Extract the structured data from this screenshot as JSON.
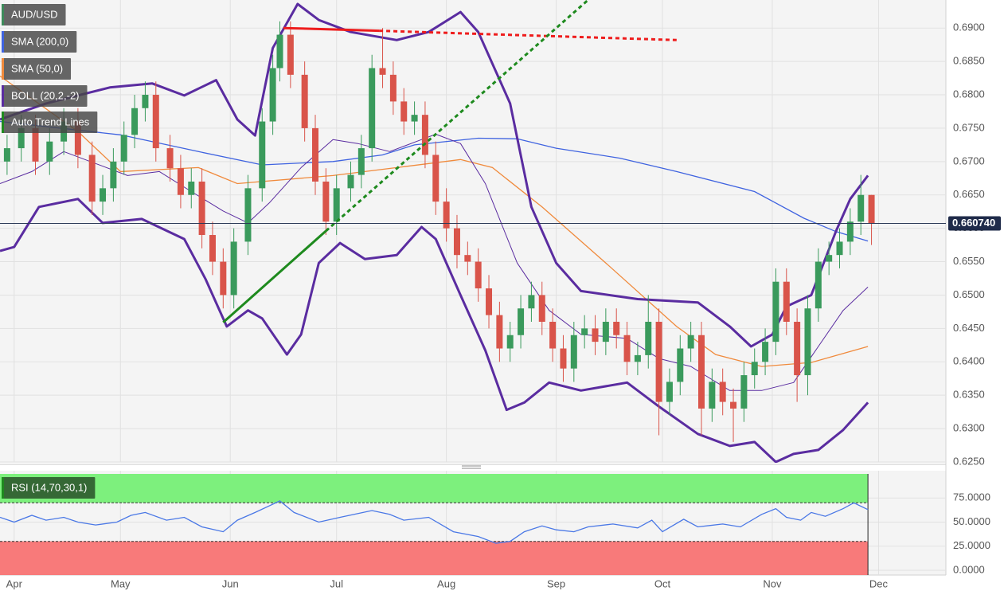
{
  "chart_data": [
    {
      "type": "candlestick",
      "name": "AUD/USD",
      "color": "#3d8a5a",
      "up_color": "#3a9a5c",
      "down_color": "#d9544a",
      "xlim": [
        -4,
        263
      ],
      "ylim": [
        0.625,
        0.6942
      ],
      "grid": true,
      "xticks": [
        {
          "value": 0,
          "label": "Apr"
        },
        {
          "value": 30,
          "label": "May"
        },
        {
          "value": 61,
          "label": "Jun"
        },
        {
          "value": 91,
          "label": "Jul"
        },
        {
          "value": 122,
          "label": "Aug"
        },
        {
          "value": 153,
          "label": "Sep"
        },
        {
          "value": 183,
          "label": "Oct"
        },
        {
          "value": 214,
          "label": "Nov"
        },
        {
          "value": 244,
          "label": "Dec"
        }
      ],
      "yticks": [
        {
          "value": 0.69,
          "label": "0.6900"
        },
        {
          "value": 0.685,
          "label": "0.6850"
        },
        {
          "value": 0.68,
          "label": "0.6800"
        },
        {
          "value": 0.675,
          "label": "0.6750"
        },
        {
          "value": 0.67,
          "label": "0.6700"
        },
        {
          "value": 0.665,
          "label": "0.6650"
        },
        {
          "value": 0.66,
          "label": "0.6600"
        },
        {
          "value": 0.655,
          "label": "0.6550"
        },
        {
          "value": 0.65,
          "label": "0.6500"
        },
        {
          "value": 0.645,
          "label": "0.6450"
        },
        {
          "value": 0.64,
          "label": "0.6400"
        },
        {
          "value": 0.635,
          "label": "0.6350"
        },
        {
          "value": 0.63,
          "label": "0.6300"
        },
        {
          "value": 0.625,
          "label": "0.6250"
        }
      ],
      "last_price": {
        "value": 0.66074,
        "label": "0.660740"
      },
      "x": [
        -2,
        2,
        6,
        10,
        14,
        18,
        22,
        25,
        28,
        31,
        34,
        37,
        40,
        44,
        47,
        50,
        53,
        56,
        59,
        62,
        66,
        70,
        73,
        75,
        78,
        82,
        85,
        88,
        91,
        95,
        98,
        101,
        104,
        107,
        110,
        113,
        116,
        119,
        122,
        125,
        128,
        131,
        134,
        137,
        140,
        143,
        146,
        149,
        152,
        155,
        158,
        161,
        164,
        167,
        170,
        173,
        176,
        179,
        182,
        185,
        188,
        191,
        194,
        197,
        200,
        203,
        206,
        209,
        212,
        215,
        218,
        221,
        224,
        227,
        230,
        233,
        236,
        239,
        242
      ],
      "open": [
        0.67,
        0.672,
        0.675,
        0.67,
        0.673,
        0.676,
        0.671,
        0.664,
        0.666,
        0.67,
        0.674,
        0.678,
        0.68,
        0.672,
        0.669,
        0.665,
        0.667,
        0.659,
        0.655,
        0.65,
        0.658,
        0.666,
        0.676,
        0.684,
        0.689,
        0.683,
        0.675,
        0.667,
        0.661,
        0.666,
        0.668,
        0.672,
        0.684,
        0.683,
        0.679,
        0.676,
        0.677,
        0.671,
        0.664,
        0.66,
        0.656,
        0.655,
        0.651,
        0.647,
        0.642,
        0.644,
        0.648,
        0.65,
        0.646,
        0.642,
        0.639,
        0.644,
        0.645,
        0.643,
        0.646,
        0.644,
        0.64,
        0.641,
        0.646,
        0.634,
        0.637,
        0.642,
        0.644,
        0.633,
        0.637,
        0.634,
        0.633,
        0.638,
        0.64,
        0.643,
        0.652,
        0.646,
        0.638,
        0.648,
        0.655,
        0.656,
        0.658,
        0.661,
        0.665
      ],
      "high": [
        0.674,
        0.677,
        0.677,
        0.675,
        0.678,
        0.678,
        0.673,
        0.668,
        0.672,
        0.676,
        0.68,
        0.682,
        0.682,
        0.674,
        0.671,
        0.669,
        0.669,
        0.661,
        0.657,
        0.66,
        0.668,
        0.678,
        0.686,
        0.691,
        0.691,
        0.685,
        0.677,
        0.669,
        0.668,
        0.67,
        0.674,
        0.686,
        0.69,
        0.685,
        0.681,
        0.679,
        0.679,
        0.673,
        0.666,
        0.662,
        0.658,
        0.657,
        0.653,
        0.649,
        0.646,
        0.65,
        0.652,
        0.652,
        0.648,
        0.644,
        0.646,
        0.647,
        0.647,
        0.648,
        0.648,
        0.646,
        0.643,
        0.65,
        0.648,
        0.639,
        0.644,
        0.646,
        0.646,
        0.639,
        0.639,
        0.636,
        0.64,
        0.642,
        0.645,
        0.654,
        0.654,
        0.648,
        0.65,
        0.657,
        0.658,
        0.66,
        0.663,
        0.668,
        0.665
      ],
      "low": [
        0.668,
        0.67,
        0.668,
        0.668,
        0.671,
        0.669,
        0.662,
        0.662,
        0.664,
        0.668,
        0.672,
        0.676,
        0.67,
        0.667,
        0.663,
        0.663,
        0.657,
        0.653,
        0.648,
        0.648,
        0.656,
        0.664,
        0.674,
        0.682,
        0.681,
        0.673,
        0.665,
        0.659,
        0.659,
        0.664,
        0.666,
        0.67,
        0.681,
        0.677,
        0.674,
        0.674,
        0.669,
        0.662,
        0.658,
        0.654,
        0.653,
        0.649,
        0.645,
        0.64,
        0.64,
        0.642,
        0.646,
        0.644,
        0.64,
        0.637,
        0.637,
        0.642,
        0.641,
        0.641,
        0.642,
        0.638,
        0.638,
        0.639,
        0.629,
        0.632,
        0.635,
        0.64,
        0.629,
        0.631,
        0.632,
        0.628,
        0.631,
        0.636,
        0.638,
        0.641,
        0.644,
        0.634,
        0.635,
        0.646,
        0.653,
        0.654,
        0.656,
        0.659,
        0.6575
      ],
      "close": [
        0.672,
        0.675,
        0.67,
        0.673,
        0.676,
        0.671,
        0.664,
        0.666,
        0.67,
        0.674,
        0.678,
        0.68,
        0.672,
        0.669,
        0.665,
        0.667,
        0.659,
        0.655,
        0.65,
        0.658,
        0.666,
        0.676,
        0.684,
        0.689,
        0.683,
        0.675,
        0.667,
        0.661,
        0.666,
        0.668,
        0.672,
        0.684,
        0.683,
        0.679,
        0.676,
        0.677,
        0.671,
        0.664,
        0.66,
        0.656,
        0.655,
        0.651,
        0.647,
        0.642,
        0.644,
        0.648,
        0.65,
        0.646,
        0.642,
        0.639,
        0.644,
        0.645,
        0.643,
        0.646,
        0.644,
        0.64,
        0.641,
        0.646,
        0.634,
        0.637,
        0.642,
        0.644,
        0.633,
        0.637,
        0.634,
        0.633,
        0.638,
        0.64,
        0.643,
        0.652,
        0.646,
        0.638,
        0.648,
        0.655,
        0.656,
        0.658,
        0.661,
        0.665,
        0.6607
      ],
      "series": [
        {
          "name": "SMA (200,0)",
          "color": "#3f63e0",
          "x": [
            -4,
            30,
            52,
            70,
            90,
            104,
            113,
            131,
            142,
            153,
            171,
            187,
            209,
            223,
            232,
            241
          ],
          "values": [
            0.676,
            0.674,
            0.6715,
            0.6695,
            0.67,
            0.671,
            0.6725,
            0.6735,
            0.6734,
            0.672,
            0.6705,
            0.6685,
            0.6655,
            0.6615,
            0.6595,
            0.6581
          ]
        },
        {
          "name": "SMA (50,0)",
          "color": "#f08a3c",
          "x": [
            -4,
            18,
            30,
            52,
            63,
            90,
            108,
            126,
            135,
            149,
            167,
            187,
            198,
            211,
            225,
            241
          ],
          "values": [
            0.6828,
            0.6745,
            0.6685,
            0.6691,
            0.6667,
            0.6679,
            0.6691,
            0.6703,
            0.6691,
            0.6632,
            0.6548,
            0.6453,
            0.6411,
            0.6393,
            0.6399,
            0.6423
          ]
        }
      ],
      "bollinger": {
        "name": "BOLL (20,2,-2)",
        "color": "#5a2ca0",
        "upper": {
          "x": [
            -4,
            9,
            27,
            39,
            48,
            57,
            63,
            68,
            73,
            80,
            86,
            95,
            108,
            117,
            126,
            131,
            140,
            146,
            153,
            160,
            176,
            193,
            202,
            208,
            214,
            218,
            225,
            232,
            236,
            241
          ],
          "values": [
            0.6763,
            0.6787,
            0.6811,
            0.6817,
            0.6799,
            0.6822,
            0.6763,
            0.6739,
            0.687,
            0.6936,
            0.6912,
            0.6894,
            0.6882,
            0.6894,
            0.6924,
            0.6894,
            0.6787,
            0.6632,
            0.6548,
            0.6506,
            0.6494,
            0.6489,
            0.6453,
            0.6423,
            0.6441,
            0.6483,
            0.65,
            0.6596,
            0.6644,
            0.6679
          ]
        },
        "middle": {
          "x": [
            -4,
            5,
            14,
            23,
            32,
            41,
            50,
            59,
            66,
            72,
            81,
            90,
            97,
            106,
            115,
            119,
            126,
            133,
            142,
            151,
            160,
            173,
            182,
            191,
            202,
            211,
            220,
            227,
            234,
            241
          ],
          "values": [
            0.6667,
            0.6685,
            0.6715,
            0.6697,
            0.6679,
            0.6685,
            0.6655,
            0.6626,
            0.6608,
            0.6638,
            0.6691,
            0.6733,
            0.6727,
            0.6715,
            0.6733,
            0.6741,
            0.6727,
            0.6667,
            0.6548,
            0.6477,
            0.6441,
            0.6435,
            0.6405,
            0.6393,
            0.6357,
            0.6357,
            0.6369,
            0.6423,
            0.6477,
            0.6512
          ]
        },
        "lower": {
          "x": [
            -4,
            0,
            7,
            18,
            25,
            36,
            48,
            54,
            60,
            66,
            70,
            77,
            81,
            86,
            92,
            99,
            108,
            115,
            119,
            126,
            133,
            139,
            144,
            151,
            160,
            173,
            182,
            193,
            202,
            209,
            215,
            220,
            227,
            234,
            241
          ],
          "values": [
            0.6566,
            0.6572,
            0.6632,
            0.6644,
            0.6608,
            0.6614,
            0.6584,
            0.6524,
            0.6453,
            0.6477,
            0.6465,
            0.6411,
            0.6441,
            0.6548,
            0.6578,
            0.6554,
            0.656,
            0.6602,
            0.6584,
            0.65,
            0.6417,
            0.6328,
            0.6339,
            0.6369,
            0.6357,
            0.6369,
            0.6333,
            0.6292,
            0.6274,
            0.628,
            0.625,
            0.6262,
            0.6268,
            0.6298,
            0.6339
          ]
        }
      },
      "trend_lines": {
        "name": "Auto Trend Lines",
        "color": "#1e8a1e",
        "lines": [
          {
            "color": "#ee1c1c",
            "dotted": false,
            "x": [
              76,
              103
            ],
            "values": [
              0.69,
              0.6896
            ]
          },
          {
            "color": "#ee1c1c",
            "dotted": true,
            "x": [
              103,
              187
            ],
            "values": [
              0.6896,
              0.6882
            ]
          },
          {
            "color": "#1e8a1e",
            "dotted": false,
            "x": [
              59,
              88
            ],
            "values": [
              0.6459,
              0.6596
            ]
          },
          {
            "color": "#1e8a1e",
            "dotted": true,
            "x": [
              88,
              162
            ],
            "values": [
              0.6596,
              0.6942
            ]
          }
        ]
      }
    },
    {
      "type": "line",
      "name": "RSI (14,70,30,1)",
      "color": "#4a78e6",
      "legend_color": "#1e8a1e",
      "ylim": [
        0,
        100
      ],
      "overbought": 70,
      "oversold": 30,
      "overbought_color": "#7df07d",
      "oversold_color": "#f87a7a",
      "yticks": [
        {
          "value": 75,
          "label": "75.0000"
        },
        {
          "value": 50,
          "label": "50.0000"
        },
        {
          "value": 25,
          "label": "25.0000"
        },
        {
          "value": 0,
          "label": "0.0000"
        }
      ],
      "x": [
        -4,
        0,
        5,
        9,
        14,
        18,
        23,
        29,
        33,
        37,
        43,
        48,
        53,
        59,
        63,
        68,
        75,
        79,
        86,
        92,
        101,
        106,
        110,
        117,
        124,
        131,
        136,
        140,
        144,
        149,
        153,
        158,
        162,
        169,
        176,
        180,
        183,
        189,
        193,
        200,
        205,
        211,
        215,
        218,
        222,
        225,
        229,
        234,
        237,
        241
      ],
      "values": [
        55,
        50,
        57,
        52,
        55,
        50,
        47,
        50,
        57,
        60,
        52,
        55,
        45,
        40,
        52,
        60,
        72,
        60,
        50,
        55,
        62,
        58,
        52,
        55,
        40,
        35,
        28,
        30,
        40,
        46,
        42,
        40,
        45,
        48,
        44,
        52,
        40,
        53,
        45,
        48,
        45,
        58,
        64,
        55,
        52,
        60,
        56,
        64,
        70,
        63
      ]
    }
  ]
}
